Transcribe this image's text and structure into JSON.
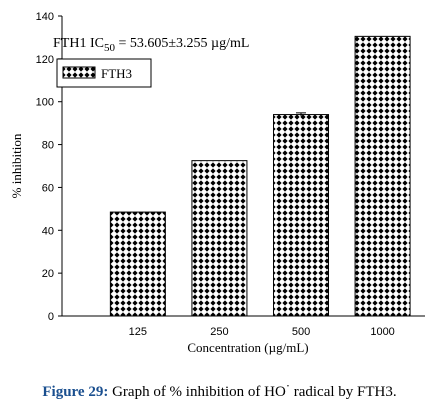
{
  "chart_data": {
    "type": "bar",
    "categories": [
      "125",
      "250",
      "500",
      "1000"
    ],
    "values": [
      48.5,
      72.5,
      94.0,
      130.5
    ],
    "error_bars": [
      0,
      0,
      0.8,
      0
    ],
    "xlabel": "Concentration (µg/mL)",
    "ylabel": "% inhibition",
    "ylim": [
      0,
      140
    ],
    "yticks": [
      "0",
      "20",
      "40",
      "60",
      "80",
      "100",
      "120",
      "140"
    ],
    "grid": false,
    "legend": {
      "placement": "top-left",
      "entries": [
        "FTH3"
      ]
    },
    "annotation": {
      "prefix": "FTH1 IC",
      "subscript": "50",
      "suffix": " = 53.605±3.255 µg/mL"
    },
    "bar_fill": "dotted-pattern",
    "colors": {
      "bar_fill": "#ffffff",
      "bar_pattern": "#000000"
    }
  },
  "caption": {
    "lead": "Figure 29:",
    "text": " Graph of % inhibition of HO",
    "superscript": "·",
    "tail": " radical by FTH3."
  }
}
